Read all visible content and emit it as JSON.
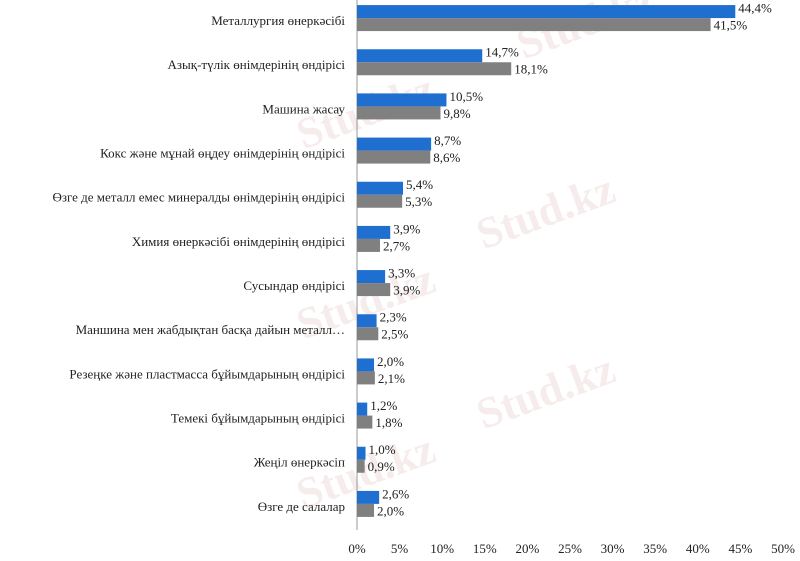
{
  "chart_data": {
    "type": "hbar",
    "watermark": "Stud.kz",
    "categories": [
      "Металлургия өнеркәсібі",
      "Азық-түлік өнімдерінің өндірісі",
      "Машина жасау",
      "Кокс және мұнай өңдеу өнімдерінің өндірісі",
      "Өзге де металл емес минералды өнімдерінің өндірісі",
      "Химия өнеркәсібі өнімдерінің өндірісі",
      "Сусындар өндірісі",
      "Маншина мен жабдықтан басқа дайын металл…",
      "Резеңке және пластмасса бұйымдарының өндірісі",
      "Темекі бұйымдарының  өндірісі",
      "Жеңіл өнеркәсіп",
      "Өзге де салалар"
    ],
    "series": [
      {
        "color": "#1f6fd0",
        "values": [
          44.4,
          14.7,
          10.5,
          8.7,
          5.4,
          3.9,
          3.3,
          2.3,
          2.0,
          1.2,
          1.0,
          2.6
        ],
        "value_labels": [
          "44,4%",
          "14,7%",
          "10,5%",
          "8,7%",
          "5,4%",
          "3,9%",
          "3,3%",
          "2,3%",
          "2,0%",
          "1,2%",
          "1,0%",
          "2,6%"
        ]
      },
      {
        "color": "#808080",
        "values": [
          41.5,
          18.1,
          9.8,
          8.6,
          5.3,
          2.7,
          3.9,
          2.5,
          2.1,
          1.8,
          0.9,
          2.0
        ],
        "value_labels": [
          "41,5%",
          "18,1%",
          "9,8%",
          "8,6%",
          "5,3%",
          "2,7%",
          "3,9%",
          "2,5%",
          "2,1%",
          "1,8%",
          "0,9%",
          "2,0%"
        ]
      }
    ],
    "xlim": [
      0,
      50
    ],
    "xticks": [
      {
        "value": 0,
        "label": "0%"
      },
      {
        "value": 5,
        "label": "5%"
      },
      {
        "value": 10,
        "label": "10%"
      },
      {
        "value": 15,
        "label": "15%"
      },
      {
        "value": 20,
        "label": "20%"
      },
      {
        "value": 25,
        "label": "25%"
      },
      {
        "value": 30,
        "label": "30%"
      },
      {
        "value": 35,
        "label": "35%"
      },
      {
        "value": 40,
        "label": "40%"
      },
      {
        "value": 45,
        "label": "45%"
      },
      {
        "value": 50,
        "label": "50%"
      }
    ]
  }
}
